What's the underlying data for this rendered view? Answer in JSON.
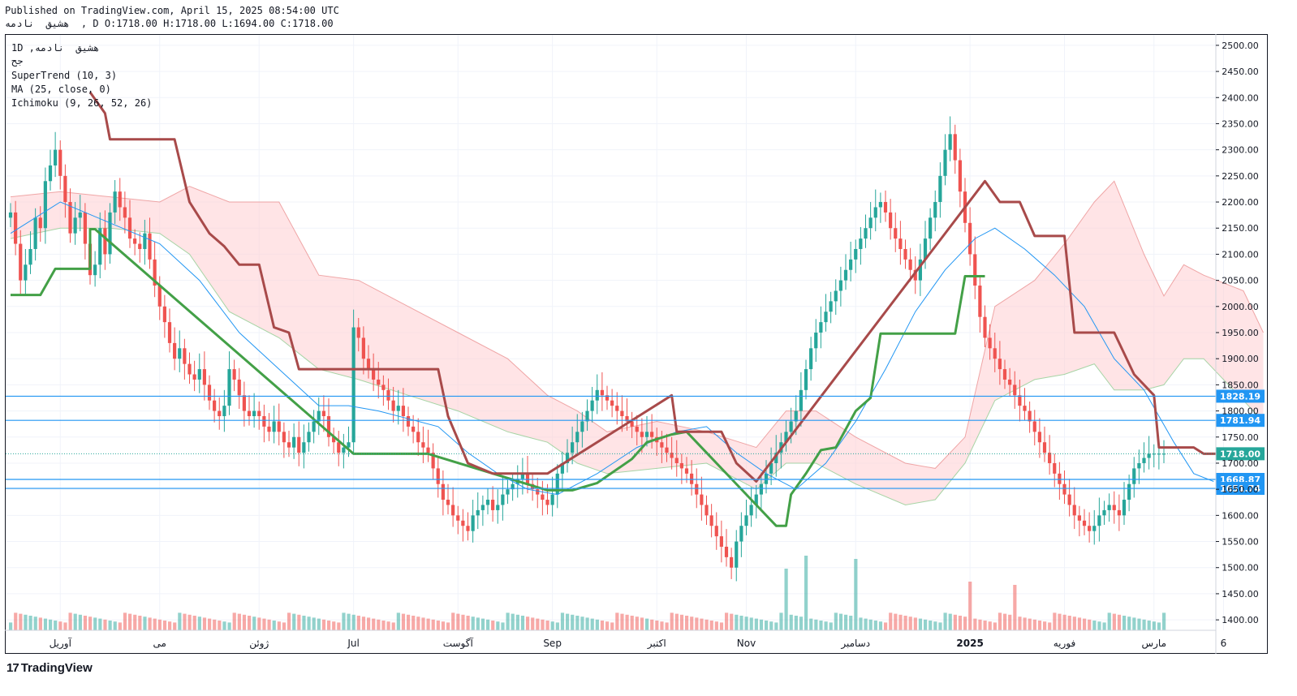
{
  "header": {
    "published": "Published on TradingView.com, April 15, 2025 08:54:00 UTC",
    "ohlc": "هشیق  نادمه  , D O:1718.00 H:1718.00 L:1694.00 C:1718.00"
  },
  "legend": {
    "symbol": "1D ,هشیق  نادمه",
    "exchange": "جح",
    "supertrend": "SuperTrend (10, 3)",
    "ma": "MA (25, close, 0)",
    "ichimoku": "Ichimoku (9, 26, 52, 26)"
  },
  "brand": {
    "logo": "17",
    "name": "TradingView"
  },
  "colors": {
    "up": "#26a69a",
    "down": "#ef5350",
    "supertrend_up": "#43a047",
    "supertrend_down": "#a84a4a",
    "ma": "#2196f3",
    "hline": "#2196f3",
    "current": "#26a69a",
    "cloud_bull": "#c8e6c9",
    "cloud_bear": "#ffcdd2"
  },
  "chart_data": {
    "type": "candlestick",
    "ylim": [
      1380,
      2520
    ],
    "y_ticks": [
      1400,
      1450,
      1500,
      1550,
      1600,
      1650,
      1700,
      1750,
      1800,
      1850,
      1900,
      1950,
      2000,
      2050,
      2100,
      2150,
      2200,
      2250,
      2300,
      2350,
      2400,
      2450,
      2500
    ],
    "y_tick_labels": [
      "1400.00",
      "1450.00",
      "1500.00",
      "1550.00",
      "1600.00",
      "1650.00",
      "1700.00",
      "1750.00",
      "1800.00",
      "1850.00",
      "1900.00",
      "1950.00",
      "2000.00",
      "2050.00",
      "2100.00",
      "2150.00",
      "2200.00",
      "2250.00",
      "2300.00",
      "2350.00",
      "2400.00",
      "2450.00",
      "2500.00"
    ],
    "x_labels": [
      {
        "label": "آوریل",
        "i": 10
      },
      {
        "label": "می",
        "i": 30
      },
      {
        "label": "ژوئن",
        "i": 50
      },
      {
        "label": "Jul",
        "i": 69
      },
      {
        "label": "آگوست",
        "i": 90
      },
      {
        "label": "Sep",
        "i": 109
      },
      {
        "label": "اکتبر",
        "i": 130
      },
      {
        "label": "Nov",
        "i": 148
      },
      {
        "label": "دسامبر",
        "i": 170
      },
      {
        "label": "2025",
        "i": 193,
        "bold": true
      },
      {
        "label": "فوریه",
        "i": 212
      },
      {
        "label": "مارس",
        "i": 230
      },
      {
        "label": "6",
        "i": 244
      }
    ],
    "price_lines": [
      {
        "value": 1828.19,
        "label": "1828.19"
      },
      {
        "value": 1781.94,
        "label": "1781.94"
      },
      {
        "value": 1668.87,
        "label": "1668.87"
      },
      {
        "value": 1651.74,
        "label": "1651.74"
      }
    ],
    "last_price": {
      "value": 1718.0,
      "label": "1718.00"
    },
    "closes": [
      2180,
      2120,
      2050,
      2080,
      2110,
      2170,
      2150,
      2240,
      2270,
      2300,
      2250,
      2200,
      2140,
      2170,
      2180,
      2120,
      2060,
      2080,
      2150,
      2100,
      2180,
      2220,
      2190,
      2170,
      2130,
      2120,
      2110,
      2140,
      2090,
      2040,
      2000,
      1970,
      1930,
      1900,
      1920,
      1890,
      1870,
      1860,
      1880,
      1850,
      1820,
      1800,
      1790,
      1810,
      1880,
      1860,
      1830,
      1800,
      1790,
      1800,
      1790,
      1770,
      1760,
      1780,
      1760,
      1740,
      1730,
      1750,
      1720,
      1740,
      1760,
      1780,
      1800,
      1790,
      1750,
      1740,
      1720,
      1730,
      1740,
      1960,
      1940,
      1900,
      1880,
      1860,
      1850,
      1840,
      1820,
      1800,
      1810,
      1790,
      1770,
      1760,
      1740,
      1730,
      1720,
      1690,
      1660,
      1630,
      1620,
      1600,
      1590,
      1580,
      1570,
      1600,
      1610,
      1620,
      1630,
      1610,
      1620,
      1640,
      1650,
      1660,
      1670,
      1680,
      1660,
      1650,
      1640,
      1630,
      1620,
      1640,
      1680,
      1700,
      1720,
      1740,
      1760,
      1780,
      1800,
      1820,
      1840,
      1830,
      1820,
      1810,
      1800,
      1790,
      1780,
      1770,
      1760,
      1750,
      1760,
      1750,
      1740,
      1730,
      1720,
      1710,
      1700,
      1690,
      1680,
      1660,
      1640,
      1620,
      1600,
      1580,
      1560,
      1540,
      1520,
      1500,
      1550,
      1580,
      1600,
      1620,
      1640,
      1660,
      1680,
      1700,
      1720,
      1740,
      1760,
      1780,
      1800,
      1840,
      1880,
      1920,
      1950,
      1970,
      1990,
      2010,
      2030,
      2050,
      2070,
      2090,
      2110,
      2130,
      2150,
      2170,
      2190,
      2200,
      2180,
      2150,
      2130,
      2110,
      2090,
      2070,
      2050,
      2090,
      2130,
      2170,
      2200,
      2250,
      2300,
      2330,
      2280,
      2220,
      2160,
      2100,
      2040,
      1980,
      1940,
      1920,
      1900,
      1880,
      1860,
      1850,
      1830,
      1810,
      1800,
      1780,
      1760,
      1740,
      1720,
      1700,
      1680,
      1660,
      1640,
      1620,
      1600,
      1590,
      1580,
      1570,
      1580,
      1600,
      1610,
      1620,
      1610,
      1600,
      1630,
      1660,
      1690,
      1700,
      1710,
      1718,
      1718,
      1718,
      1718
    ],
    "supertrend_up": [
      [
        0,
        2022
      ],
      [
        6,
        2022
      ],
      [
        9,
        2072
      ],
      [
        16,
        2072
      ],
      [
        16,
        2148
      ],
      [
        17,
        2148
      ],
      [
        69,
        1718
      ],
      [
        84,
        1718
      ],
      [
        108,
        1648
      ],
      [
        113,
        1648
      ],
      [
        118,
        1662
      ],
      [
        125,
        1708
      ],
      [
        128,
        1740
      ],
      [
        133,
        1755
      ],
      [
        136,
        1760
      ],
      [
        150,
        1620
      ],
      [
        154,
        1580
      ],
      [
        156,
        1580
      ],
      [
        157,
        1640
      ],
      [
        160,
        1680
      ],
      [
        163,
        1725
      ],
      [
        166,
        1730
      ],
      [
        170,
        1800
      ],
      [
        173,
        1825
      ],
      [
        175,
        1948
      ],
      [
        180,
        1948
      ],
      [
        190,
        1948
      ],
      [
        192,
        2058
      ],
      [
        196,
        2058
      ]
    ],
    "supertrend_down": [
      [
        16,
        2410
      ],
      [
        19,
        2370
      ],
      [
        20,
        2320
      ],
      [
        33,
        2320
      ],
      [
        36,
        2200
      ],
      [
        40,
        2140
      ],
      [
        43,
        2115
      ],
      [
        46,
        2080
      ],
      [
        50,
        2080
      ],
      [
        53,
        1960
      ],
      [
        56,
        1950
      ],
      [
        58,
        1880
      ],
      [
        69,
        1880
      ],
      [
        86,
        1880
      ],
      [
        88,
        1790
      ],
      [
        92,
        1700
      ],
      [
        97,
        1680
      ],
      [
        108,
        1680
      ],
      [
        133,
        1830
      ],
      [
        134,
        1760
      ],
      [
        143,
        1760
      ],
      [
        146,
        1700
      ],
      [
        150,
        1665
      ],
      [
        196,
        2240
      ],
      [
        199,
        2200
      ],
      [
        203,
        2200
      ],
      [
        206,
        2135
      ],
      [
        212,
        2135
      ],
      [
        214,
        1950
      ],
      [
        222,
        1950
      ],
      [
        226,
        1870
      ],
      [
        230,
        1830
      ],
      [
        231,
        1730
      ],
      [
        238,
        1730
      ],
      [
        240,
        1718
      ],
      [
        244,
        1718
      ]
    ],
    "ma": [
      [
        0,
        2140
      ],
      [
        10,
        2200
      ],
      [
        20,
        2160
      ],
      [
        30,
        2120
      ],
      [
        38,
        2050
      ],
      [
        46,
        1950
      ],
      [
        54,
        1880
      ],
      [
        62,
        1810
      ],
      [
        68,
        1810
      ],
      [
        74,
        1800
      ],
      [
        80,
        1785
      ],
      [
        86,
        1770
      ],
      [
        92,
        1720
      ],
      [
        98,
        1680
      ],
      [
        104,
        1650
      ],
      [
        110,
        1640
      ],
      [
        118,
        1680
      ],
      [
        126,
        1730
      ],
      [
        134,
        1760
      ],
      [
        140,
        1770
      ],
      [
        146,
        1720
      ],
      [
        152,
        1680
      ],
      [
        158,
        1650
      ],
      [
        164,
        1700
      ],
      [
        170,
        1780
      ],
      [
        176,
        1880
      ],
      [
        182,
        1990
      ],
      [
        188,
        2070
      ],
      [
        194,
        2130
      ],
      [
        198,
        2150
      ],
      [
        204,
        2110
      ],
      [
        210,
        2060
      ],
      [
        216,
        2000
      ],
      [
        222,
        1900
      ],
      [
        228,
        1840
      ],
      [
        234,
        1740
      ],
      [
        238,
        1680
      ],
      [
        242,
        1665
      ]
    ],
    "cloud_top": [
      [
        0,
        2210
      ],
      [
        10,
        2220
      ],
      [
        20,
        2210
      ],
      [
        30,
        2200
      ],
      [
        36,
        2230
      ],
      [
        44,
        2200
      ],
      [
        54,
        2200
      ],
      [
        62,
        2060
      ],
      [
        70,
        2050
      ],
      [
        80,
        2000
      ],
      [
        90,
        1950
      ],
      [
        100,
        1900
      ],
      [
        108,
        1830
      ],
      [
        114,
        1800
      ],
      [
        120,
        1760
      ],
      [
        130,
        1780
      ],
      [
        140,
        1760
      ],
      [
        150,
        1730
      ],
      [
        156,
        1800
      ],
      [
        162,
        1800
      ],
      [
        170,
        1750
      ],
      [
        180,
        1700
      ],
      [
        186,
        1690
      ],
      [
        192,
        1750
      ],
      [
        198,
        2000
      ],
      [
        206,
        2050
      ],
      [
        212,
        2120
      ],
      [
        218,
        2200
      ],
      [
        222,
        2240
      ],
      [
        228,
        2100
      ],
      [
        232,
        2020
      ],
      [
        236,
        2080
      ],
      [
        240,
        2060
      ],
      [
        248,
        2030
      ],
      [
        252,
        1950
      ]
    ],
    "cloud_bottom": [
      [
        0,
        2130
      ],
      [
        10,
        2150
      ],
      [
        20,
        2150
      ],
      [
        30,
        2140
      ],
      [
        36,
        2100
      ],
      [
        44,
        1990
      ],
      [
        54,
        1940
      ],
      [
        62,
        1880
      ],
      [
        70,
        1860
      ],
      [
        80,
        1830
      ],
      [
        90,
        1800
      ],
      [
        100,
        1760
      ],
      [
        108,
        1740
      ],
      [
        114,
        1700
      ],
      [
        120,
        1680
      ],
      [
        130,
        1690
      ],
      [
        140,
        1700
      ],
      [
        150,
        1650
      ],
      [
        156,
        1700
      ],
      [
        162,
        1700
      ],
      [
        170,
        1660
      ],
      [
        180,
        1620
      ],
      [
        186,
        1630
      ],
      [
        192,
        1700
      ],
      [
        198,
        1820
      ],
      [
        206,
        1860
      ],
      [
        212,
        1870
      ],
      [
        218,
        1890
      ],
      [
        222,
        1840
      ],
      [
        228,
        1840
      ],
      [
        232,
        1850
      ],
      [
        236,
        1900
      ],
      [
        240,
        1900
      ],
      [
        248,
        1820
      ],
      [
        252,
        1780
      ]
    ],
    "volume_ylim": [
      0,
      150000000
    ],
    "volume_spike_indices": [
      156,
      160,
      170,
      193,
      202,
      243
    ],
    "volume_spike_values": [
      95000000,
      115000000,
      110000000,
      75000000,
      70000000,
      65000000
    ]
  }
}
